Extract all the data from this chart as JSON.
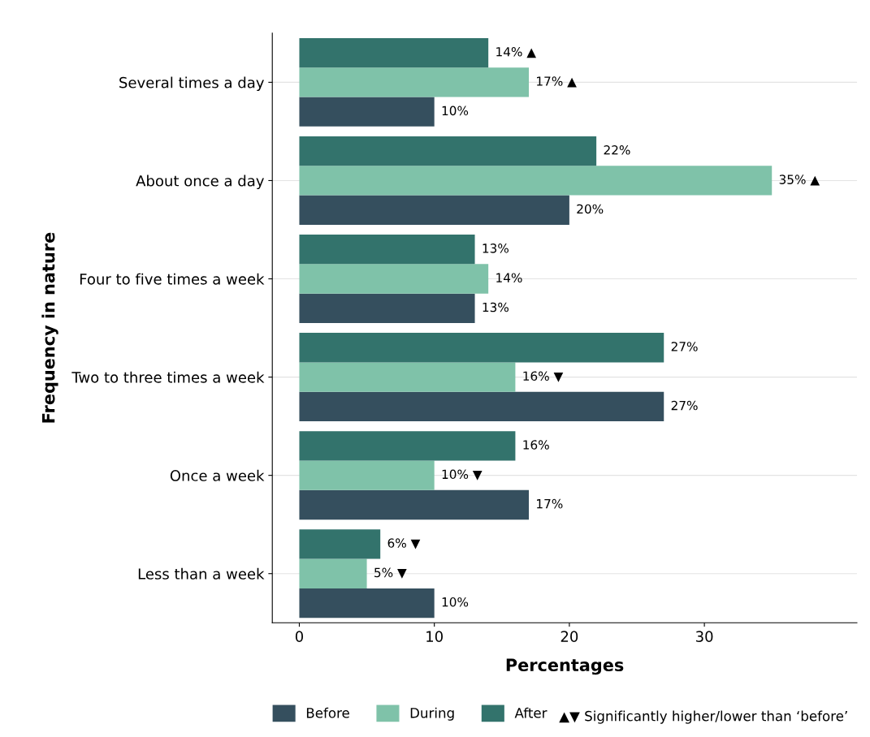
{
  "chart_data": {
    "type": "bar",
    "orientation": "horizontal",
    "categories": [
      "Several times a day",
      "About once a day",
      "Four to five times a week",
      "Two to three times a week",
      "Once a week",
      "Less than a week"
    ],
    "series": [
      {
        "name": "Before",
        "color": "#354f5e",
        "values": [
          10,
          20,
          13,
          27,
          17,
          10
        ],
        "value_labels": [
          "10%",
          "20%",
          "13%",
          "27%",
          "17%",
          "10%"
        ]
      },
      {
        "name": "During",
        "color": "#7fc2a9",
        "values": [
          17,
          35,
          14,
          16,
          10,
          5
        ],
        "value_labels": [
          "17% ▲",
          "35% ▲",
          "14%",
          "16% ▼",
          "10% ▼",
          "5% ▼"
        ]
      },
      {
        "name": "After",
        "color": "#33736c",
        "values": [
          14,
          22,
          13,
          27,
          16,
          6
        ],
        "value_labels": [
          "14% ▲",
          "22%",
          "13%",
          "27%",
          "16%",
          "6% ▼"
        ]
      }
    ],
    "xlabel": "Percentages",
    "ylabel": "Frequency in nature",
    "xlim": [
      -2,
      41.3
    ],
    "xticks": [
      0,
      10,
      20,
      30
    ],
    "grid": "y",
    "legend": "bottom",
    "annotations": [
      "▲▼ Significantly higher/lower than ‘before’"
    ]
  }
}
